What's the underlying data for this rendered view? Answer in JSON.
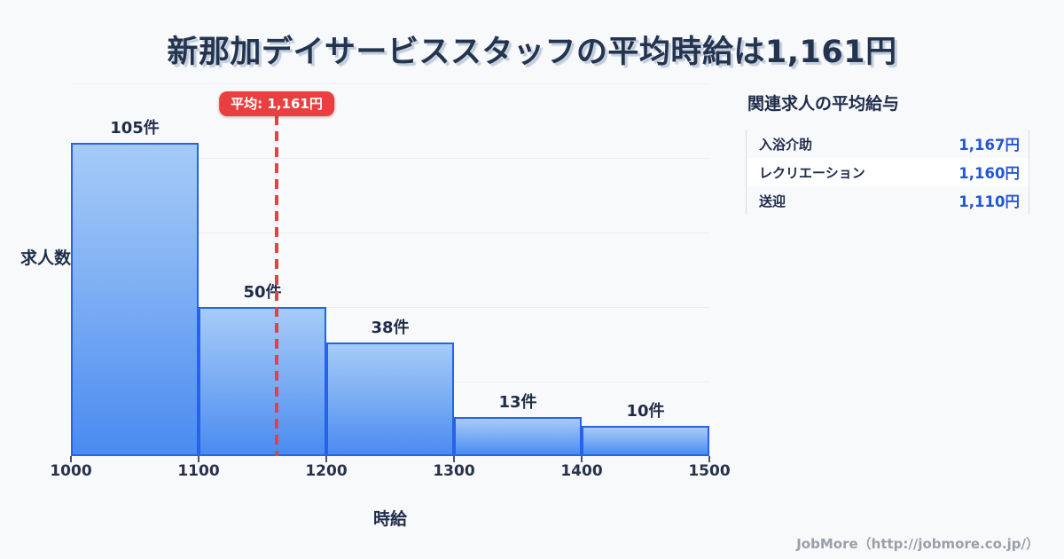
{
  "page": {
    "title": "新那加デイサービススタッフの平均時給は1,161円",
    "footer": "JobMore（http://jobmore.co.jp/）"
  },
  "chart_data": {
    "type": "bar",
    "title": "新那加デイサービススタッフの平均時給は1,161円",
    "categories": [
      "1000-1100",
      "1100-1200",
      "1200-1300",
      "1300-1400",
      "1400-1500"
    ],
    "values": [
      105,
      50,
      38,
      13,
      10
    ],
    "bar_labels": [
      "105件",
      "50件",
      "38件",
      "13件",
      "10件"
    ],
    "x_ticks": [
      "1000",
      "1100",
      "1200",
      "1300",
      "1400",
      "1500"
    ],
    "x_range": [
      1000,
      1500
    ],
    "xlabel": "時給",
    "ylabel": "求人数",
    "ylim": [
      0,
      125
    ],
    "gridline_step": 25,
    "grid": true,
    "legend": false,
    "average": {
      "value": 1161,
      "label": "平均: 1,161円"
    },
    "colors": {
      "bar_fill_top": "#a6cbf8",
      "bar_fill_bottom": "#4a8bf1",
      "bar_border": "#2563eb",
      "average_line": "#e84040",
      "grid": "#e9edf2",
      "value_text": "#2456d4",
      "title_text": "#24344f"
    }
  },
  "related_panel": {
    "title": "関連求人の平均給与",
    "rows": [
      {
        "label": "入浴介助",
        "value": "1,167円"
      },
      {
        "label": "レクリエーション",
        "value": "1,160円"
      },
      {
        "label": "送迎",
        "value": "1,110円"
      }
    ]
  }
}
